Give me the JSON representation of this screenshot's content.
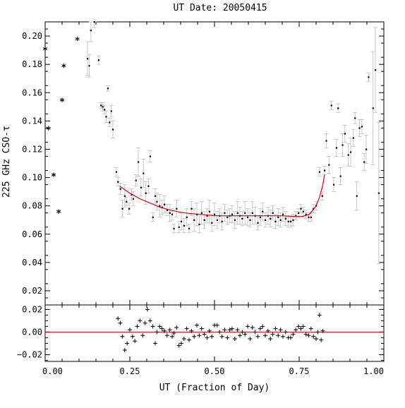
{
  "chart_data": [
    {
      "id": "main",
      "type": "scatter",
      "title": "UT Date: 20050415",
      "ylabel": "225 GHz CSO-τ",
      "xlabel": "",
      "xlim": [
        0.0,
        1.0
      ],
      "ylim": [
        0.01,
        0.21
      ],
      "xticks": [
        0.0,
        0.25,
        0.5,
        0.75,
        1.0
      ],
      "yticks": [
        0.02,
        0.04,
        0.06,
        0.08,
        0.1,
        0.12,
        0.14,
        0.16,
        0.18,
        0.2
      ],
      "ytick_labels": [
        "0.02",
        "0.04",
        "0.06",
        "0.08",
        "0.10",
        "0.12",
        "0.14",
        "0.16",
        "0.18",
        "0.20"
      ],
      "grid": false,
      "colors": {
        "points": "#000000",
        "errorbars": "#c8c8c8",
        "fit": "#dd0000"
      },
      "star_points": {
        "x": [
          0.0,
          0.01,
          0.025,
          0.04,
          0.05,
          0.055,
          0.095
        ],
        "y": [
          0.19,
          0.134,
          0.101,
          0.075,
          0.154,
          0.178,
          0.197
        ]
      },
      "points": [
        {
          "x": 0.125,
          "y": 0.184,
          "e": 0.012
        },
        {
          "x": 0.13,
          "y": 0.179,
          "e": 0.008
        },
        {
          "x": 0.135,
          "y": 0.204,
          "e": 0.008
        },
        {
          "x": 0.145,
          "y": 0.21,
          "e": 0.004
        },
        {
          "x": 0.158,
          "y": 0.183,
          "e": 0.003
        },
        {
          "x": 0.165,
          "y": 0.151,
          "e": 0.002
        },
        {
          "x": 0.17,
          "y": 0.15,
          "e": 0.003
        },
        {
          "x": 0.175,
          "y": 0.148,
          "e": 0.003
        },
        {
          "x": 0.18,
          "y": 0.143,
          "e": 0.004
        },
        {
          "x": 0.185,
          "y": 0.163,
          "e": 0.002
        },
        {
          "x": 0.19,
          "y": 0.139,
          "e": 0.003
        },
        {
          "x": 0.195,
          "y": 0.147,
          "e": 0.004
        },
        {
          "x": 0.2,
          "y": 0.134,
          "e": 0.006
        },
        {
          "x": 0.21,
          "y": 0.104,
          "e": 0.003
        },
        {
          "x": 0.215,
          "y": 0.097,
          "e": 0.003
        },
        {
          "x": 0.222,
          "y": 0.092,
          "e": 0.004
        },
        {
          "x": 0.228,
          "y": 0.078,
          "e": 0.006
        },
        {
          "x": 0.235,
          "y": 0.087,
          "e": 0.008
        },
        {
          "x": 0.24,
          "y": 0.083,
          "e": 0.003
        },
        {
          "x": 0.248,
          "y": 0.078,
          "e": 0.004
        },
        {
          "x": 0.255,
          "y": 0.088,
          "e": 0.004
        },
        {
          "x": 0.26,
          "y": 0.085,
          "e": 0.005
        },
        {
          "x": 0.268,
          "y": 0.098,
          "e": 0.004
        },
        {
          "x": 0.275,
          "y": 0.111,
          "e": 0.01
        },
        {
          "x": 0.283,
          "y": 0.093,
          "e": 0.006
        },
        {
          "x": 0.29,
          "y": 0.103,
          "e": 0.01
        },
        {
          "x": 0.297,
          "y": 0.089,
          "e": 0.008
        },
        {
          "x": 0.305,
          "y": 0.094,
          "e": 0.005
        },
        {
          "x": 0.31,
          "y": 0.115,
          "e": 0.004
        },
        {
          "x": 0.318,
          "y": 0.072,
          "e": 0.003
        },
        {
          "x": 0.325,
          "y": 0.087,
          "e": 0.005
        },
        {
          "x": 0.33,
          "y": 0.083,
          "e": 0.006
        },
        {
          "x": 0.338,
          "y": 0.08,
          "e": 0.008
        },
        {
          "x": 0.345,
          "y": 0.079,
          "e": 0.005
        },
        {
          "x": 0.352,
          "y": 0.081,
          "e": 0.006
        },
        {
          "x": 0.36,
          "y": 0.077,
          "e": 0.004
        },
        {
          "x": 0.368,
          "y": 0.075,
          "e": 0.006
        },
        {
          "x": 0.375,
          "y": 0.074,
          "e": 0.004
        },
        {
          "x": 0.38,
          "y": 0.064,
          "e": 0.003
        },
        {
          "x": 0.388,
          "y": 0.078,
          "e": 0.006
        },
        {
          "x": 0.395,
          "y": 0.065,
          "e": 0.004
        },
        {
          "x": 0.402,
          "y": 0.069,
          "e": 0.006
        },
        {
          "x": 0.41,
          "y": 0.066,
          "e": 0.005
        },
        {
          "x": 0.418,
          "y": 0.072,
          "e": 0.006
        },
        {
          "x": 0.425,
          "y": 0.064,
          "e": 0.003
        },
        {
          "x": 0.432,
          "y": 0.078,
          "e": 0.005
        },
        {
          "x": 0.44,
          "y": 0.07,
          "e": 0.008
        },
        {
          "x": 0.448,
          "y": 0.074,
          "e": 0.008
        },
        {
          "x": 0.455,
          "y": 0.067,
          "e": 0.006
        },
        {
          "x": 0.462,
          "y": 0.075,
          "e": 0.008
        },
        {
          "x": 0.47,
          "y": 0.07,
          "e": 0.006
        },
        {
          "x": 0.478,
          "y": 0.073,
          "e": 0.005
        },
        {
          "x": 0.485,
          "y": 0.076,
          "e": 0.008
        },
        {
          "x": 0.492,
          "y": 0.068,
          "e": 0.006
        },
        {
          "x": 0.5,
          "y": 0.074,
          "e": 0.008
        },
        {
          "x": 0.508,
          "y": 0.07,
          "e": 0.006
        },
        {
          "x": 0.515,
          "y": 0.073,
          "e": 0.005
        },
        {
          "x": 0.522,
          "y": 0.069,
          "e": 0.006
        },
        {
          "x": 0.53,
          "y": 0.075,
          "e": 0.006
        },
        {
          "x": 0.538,
          "y": 0.072,
          "e": 0.005
        },
        {
          "x": 0.545,
          "y": 0.073,
          "e": 0.005
        },
        {
          "x": 0.552,
          "y": 0.074,
          "e": 0.006
        },
        {
          "x": 0.56,
          "y": 0.07,
          "e": 0.006
        },
        {
          "x": 0.568,
          "y": 0.075,
          "e": 0.008
        },
        {
          "x": 0.575,
          "y": 0.073,
          "e": 0.006
        },
        {
          "x": 0.582,
          "y": 0.071,
          "e": 0.005
        },
        {
          "x": 0.59,
          "y": 0.075,
          "e": 0.008
        },
        {
          "x": 0.598,
          "y": 0.072,
          "e": 0.006
        },
        {
          "x": 0.605,
          "y": 0.07,
          "e": 0.005
        },
        {
          "x": 0.612,
          "y": 0.075,
          "e": 0.008
        },
        {
          "x": 0.62,
          "y": 0.073,
          "e": 0.006
        },
        {
          "x": 0.628,
          "y": 0.068,
          "e": 0.005
        },
        {
          "x": 0.635,
          "y": 0.072,
          "e": 0.006
        },
        {
          "x": 0.642,
          "y": 0.076,
          "e": 0.006
        },
        {
          "x": 0.65,
          "y": 0.07,
          "e": 0.005
        },
        {
          "x": 0.658,
          "y": 0.073,
          "e": 0.006
        },
        {
          "x": 0.665,
          "y": 0.071,
          "e": 0.006
        },
        {
          "x": 0.672,
          "y": 0.075,
          "e": 0.005
        },
        {
          "x": 0.68,
          "y": 0.069,
          "e": 0.005
        },
        {
          "x": 0.688,
          "y": 0.072,
          "e": 0.006
        },
        {
          "x": 0.695,
          "y": 0.07,
          "e": 0.005
        },
        {
          "x": 0.702,
          "y": 0.074,
          "e": 0.005
        },
        {
          "x": 0.71,
          "y": 0.071,
          "e": 0.005
        },
        {
          "x": 0.718,
          "y": 0.069,
          "e": 0.004
        },
        {
          "x": 0.725,
          "y": 0.069,
          "e": 0.004
        },
        {
          "x": 0.732,
          "y": 0.07,
          "e": 0.004
        },
        {
          "x": 0.74,
          "y": 0.073,
          "e": 0.003
        },
        {
          "x": 0.748,
          "y": 0.075,
          "e": 0.003
        },
        {
          "x": 0.755,
          "y": 0.078,
          "e": 0.003
        },
        {
          "x": 0.762,
          "y": 0.076,
          "e": 0.003
        },
        {
          "x": 0.77,
          "y": 0.074,
          "e": 0.003
        },
        {
          "x": 0.778,
          "y": 0.072,
          "e": 0.003
        },
        {
          "x": 0.785,
          "y": 0.072,
          "e": 0.003
        },
        {
          "x": 0.792,
          "y": 0.078,
          "e": 0.003
        },
        {
          "x": 0.8,
          "y": 0.08,
          "e": 0.003
        },
        {
          "x": 0.81,
          "y": 0.104,
          "e": 0.003
        },
        {
          "x": 0.818,
          "y": 0.087,
          "e": 0.003
        },
        {
          "x": 0.825,
          "y": 0.105,
          "e": 0.003
        },
        {
          "x": 0.83,
          "y": 0.126,
          "e": 0.005
        },
        {
          "x": 0.838,
          "y": 0.109,
          "e": 0.006
        },
        {
          "x": 0.845,
          "y": 0.151,
          "e": 0.003
        },
        {
          "x": 0.852,
          "y": 0.095,
          "e": 0.005
        },
        {
          "x": 0.86,
          "y": 0.121,
          "e": 0.006
        },
        {
          "x": 0.865,
          "y": 0.149,
          "e": 0.003
        },
        {
          "x": 0.872,
          "y": 0.101,
          "e": 0.006
        },
        {
          "x": 0.878,
          "y": 0.123,
          "e": 0.008
        },
        {
          "x": 0.885,
          "y": 0.131,
          "e": 0.006
        },
        {
          "x": 0.895,
          "y": 0.116,
          "e": 0.008
        },
        {
          "x": 0.902,
          "y": 0.118,
          "e": 0.01
        },
        {
          "x": 0.91,
          "y": 0.128,
          "e": 0.006
        },
        {
          "x": 0.915,
          "y": 0.142,
          "e": 0.004
        },
        {
          "x": 0.92,
          "y": 0.087,
          "e": 0.01
        },
        {
          "x": 0.928,
          "y": 0.135,
          "e": 0.006
        },
        {
          "x": 0.935,
          "y": 0.136,
          "e": 0.005
        },
        {
          "x": 0.942,
          "y": 0.111,
          "e": 0.006
        },
        {
          "x": 0.948,
          "y": 0.12,
          "e": 0.01
        },
        {
          "x": 0.955,
          "y": 0.171,
          "e": 0.003
        },
        {
          "x": 0.968,
          "y": 0.149,
          "e": 0.04
        },
        {
          "x": 0.975,
          "y": 0.176,
          "e": 0.03
        },
        {
          "x": 0.985,
          "y": 0.089,
          "e": 0.05
        }
      ],
      "fit_line": {
        "x": [
          0.22,
          0.25,
          0.28,
          0.31,
          0.34,
          0.37,
          0.4,
          0.43,
          0.46,
          0.5,
          0.55,
          0.6,
          0.65,
          0.7,
          0.73,
          0.76,
          0.78,
          0.8,
          0.81,
          0.82,
          0.825
        ],
        "y": [
          0.094,
          0.089,
          0.085,
          0.082,
          0.079,
          0.077,
          0.0755,
          0.0745,
          0.074,
          0.073,
          0.073,
          0.073,
          0.073,
          0.073,
          0.0725,
          0.0725,
          0.074,
          0.08,
          0.086,
          0.095,
          0.102
        ]
      }
    },
    {
      "id": "residuals",
      "type": "scatter",
      "xlabel": "UT (Fraction of Day)",
      "ylabel": "",
      "xlim": [
        0.0,
        1.0
      ],
      "ylim": [
        -0.026,
        0.024
      ],
      "xticks": [
        0.0,
        0.25,
        0.5,
        0.75,
        1.0
      ],
      "xtick_labels": [
        "0.00",
        "0.25",
        "0.50",
        "0.75",
        "1.00"
      ],
      "yticks": [
        -0.02,
        0.0,
        0.02
      ],
      "ytick_labels": [
        "−0.02",
        "0.00",
        "0.02"
      ],
      "zero_line": 0.0,
      "colors": {
        "points": "#000000",
        "zero_line": "#dd0000"
      },
      "x": [
        0.215,
        0.222,
        0.228,
        0.235,
        0.242,
        0.25,
        0.258,
        0.265,
        0.272,
        0.28,
        0.288,
        0.295,
        0.302,
        0.31,
        0.318,
        0.325,
        0.33,
        0.338,
        0.345,
        0.352,
        0.36,
        0.368,
        0.375,
        0.38,
        0.388,
        0.395,
        0.402,
        0.41,
        0.418,
        0.425,
        0.432,
        0.44,
        0.448,
        0.455,
        0.462,
        0.47,
        0.478,
        0.485,
        0.492,
        0.5,
        0.508,
        0.515,
        0.522,
        0.53,
        0.538,
        0.545,
        0.552,
        0.56,
        0.568,
        0.575,
        0.582,
        0.59,
        0.598,
        0.605,
        0.612,
        0.62,
        0.628,
        0.635,
        0.642,
        0.65,
        0.658,
        0.665,
        0.672,
        0.68,
        0.688,
        0.695,
        0.702,
        0.71,
        0.718,
        0.725,
        0.732,
        0.74,
        0.748,
        0.755,
        0.762,
        0.77,
        0.778,
        0.785,
        0.792,
        0.8,
        0.805,
        0.81,
        0.815,
        0.82
      ],
      "y": [
        0.012,
        0.008,
        -0.004,
        -0.016,
        -0.01,
        0.002,
        -0.004,
        -0.008,
        0.005,
        0.01,
        -0.003,
        0.008,
        0.02,
        0.01,
        0.005,
        -0.01,
        0.0,
        0.005,
        0.003,
        0.001,
        -0.003,
        0.002,
        -0.004,
        -0.001,
        0.004,
        -0.012,
        -0.01,
        -0.006,
        0.003,
        -0.007,
        0.001,
        -0.004,
        0.006,
        -0.003,
        0.003,
        -0.002,
        -0.005,
        0.001,
        -0.004,
        0.006,
        0.006,
        0.0,
        -0.004,
        0.002,
        -0.005,
        0.002,
        0.003,
        -0.006,
        0.002,
        -0.003,
        0.0,
        -0.002,
        0.005,
        -0.006,
        0.004,
        0.0,
        -0.004,
        0.003,
        0.005,
        -0.003,
        0.001,
        -0.006,
        -0.002,
        0.003,
        -0.003,
        0.002,
        -0.004,
        0.0,
        -0.005,
        -0.005,
        -0.002,
        0.002,
        0.005,
        0.003,
        0.005,
        -0.002,
        -0.003,
        0.003,
        -0.004,
        -0.006,
        0.0,
        0.015,
        -0.007,
        0.001
      ]
    }
  ]
}
